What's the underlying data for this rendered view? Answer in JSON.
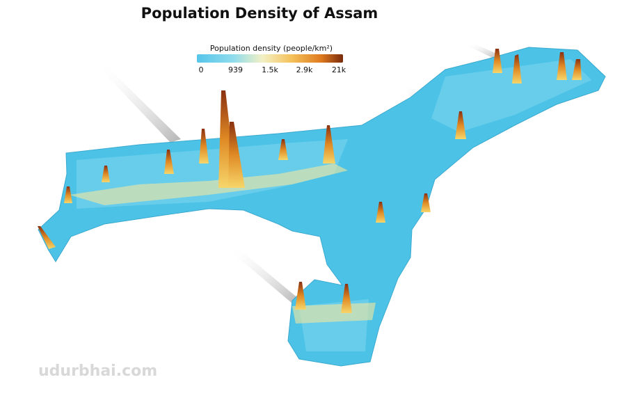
{
  "title": "Population Density of Assam",
  "legend": {
    "title": "Population density (people/km²)",
    "ticks": [
      "0",
      "939",
      "1.5k",
      "2.9k",
      "21k"
    ]
  },
  "watermark": "udurbhai.com"
}
